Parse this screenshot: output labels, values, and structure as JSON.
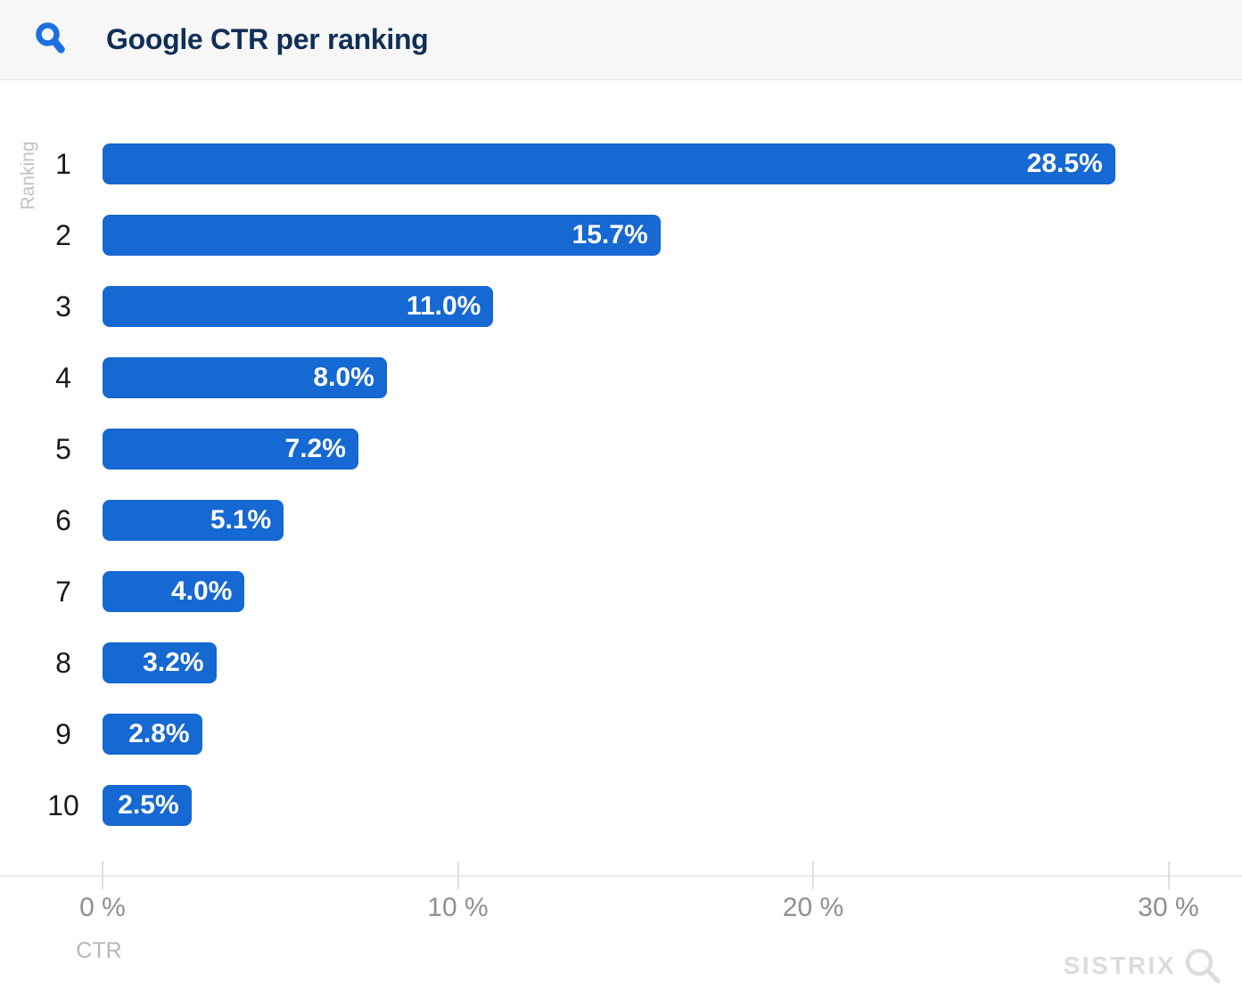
{
  "header": {
    "title": "Google CTR per ranking"
  },
  "chart_data": {
    "type": "bar",
    "orientation": "horizontal",
    "title": "Google CTR per ranking",
    "categories": [
      "1",
      "2",
      "3",
      "4",
      "5",
      "6",
      "7",
      "8",
      "9",
      "10"
    ],
    "values": [
      28.5,
      15.7,
      11.0,
      8.0,
      7.2,
      5.1,
      4.0,
      3.2,
      2.8,
      2.5
    ],
    "value_labels": [
      "28.5%",
      "15.7%",
      "11.0%",
      "8.0%",
      "7.2%",
      "5.1%",
      "4.0%",
      "3.2%",
      "2.8%",
      "2.5%"
    ],
    "xlabel": "CTR",
    "ylabel": "Ranking",
    "x_ticks": [
      {
        "value": 0,
        "label": "0 %"
      },
      {
        "value": 10,
        "label": "10 %"
      },
      {
        "value": 20,
        "label": "20 %"
      },
      {
        "value": 30,
        "label": "30 %"
      }
    ],
    "xlim": [
      0,
      32
    ],
    "grid": false,
    "legend": "none",
    "bar_color": "#1668d2",
    "value_label_color": "#ffffff"
  },
  "branding": {
    "logo_text": "SISTRIX"
  },
  "icons": {
    "header_icon": "search-icon",
    "brand_icon": "search-icon"
  },
  "colors": {
    "bar": "#1668d2",
    "header_icon": "#1c70e2",
    "title": "#112f56",
    "axis": "#eaeaea",
    "tick_text": "#8f8f8f",
    "brand": "#dcdcdc"
  }
}
